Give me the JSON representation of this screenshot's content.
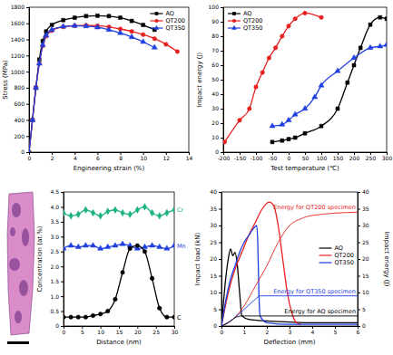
{
  "chart_data": [
    {
      "type": "line",
      "x_label": "Engineering strain (%)",
      "y_label": "Stress (MPa)",
      "xlim": [
        0,
        14
      ],
      "xticks": [
        0,
        2,
        4,
        6,
        8,
        10,
        12,
        14
      ],
      "ylim": [
        0,
        1800
      ],
      "yticks": [
        0,
        200,
        400,
        600,
        800,
        1000,
        1200,
        1400,
        1600,
        1800
      ],
      "legend": "upper right",
      "series": [
        {
          "name": "AQ",
          "color": "#000000",
          "marker": "square",
          "x": [
            0,
            0.3,
            0.6,
            0.9,
            1.2,
            1.5,
            2,
            3,
            4,
            5,
            6,
            7,
            8,
            9,
            10,
            11
          ],
          "values": [
            0,
            400,
            800,
            1150,
            1380,
            1500,
            1580,
            1640,
            1670,
            1690,
            1695,
            1690,
            1670,
            1630,
            1580,
            1520
          ]
        },
        {
          "name": "QT200",
          "color": "#e8201e",
          "marker": "circle",
          "x": [
            0,
            0.3,
            0.6,
            0.9,
            1.2,
            1.5,
            2,
            3,
            4,
            5,
            6,
            7,
            8,
            9,
            10,
            11,
            12,
            13
          ],
          "values": [
            0,
            400,
            800,
            1100,
            1320,
            1440,
            1510,
            1555,
            1570,
            1575,
            1570,
            1555,
            1530,
            1500,
            1460,
            1410,
            1340,
            1250
          ]
        },
        {
          "name": "QT350",
          "color": "#1f3fe0",
          "marker": "triangle",
          "x": [
            0,
            0.3,
            0.6,
            0.9,
            1.2,
            1.5,
            2,
            3,
            4,
            5,
            6,
            7,
            8,
            9,
            10,
            11
          ],
          "values": [
            0,
            400,
            800,
            1100,
            1330,
            1450,
            1520,
            1560,
            1570,
            1565,
            1550,
            1520,
            1480,
            1430,
            1370,
            1300
          ]
        }
      ]
    },
    {
      "type": "line",
      "x_label": "Test temperature (℃)",
      "y_label": "Impact energy (J)",
      "xlim": [
        -200,
        300
      ],
      "xticks": [
        -200,
        -150,
        -100,
        -50,
        0,
        50,
        100,
        150,
        200,
        250,
        300
      ],
      "ylim": [
        0,
        100
      ],
      "yticks": [
        0,
        10,
        20,
        30,
        40,
        50,
        60,
        70,
        80,
        90,
        100
      ],
      "legend": "upper left",
      "series": [
        {
          "name": "AQ",
          "color": "#000000",
          "marker": "square",
          "x": [
            -50,
            -20,
            0,
            20,
            50,
            100,
            150,
            180,
            200,
            220,
            250,
            280,
            300
          ],
          "values": [
            7,
            8,
            9,
            10,
            13,
            18,
            30,
            48,
            60,
            72,
            88,
            93,
            92
          ]
        },
        {
          "name": "QT200",
          "color": "#e8201e",
          "marker": "circle",
          "x": [
            -196,
            -150,
            -120,
            -100,
            -80,
            -60,
            -40,
            -20,
            0,
            20,
            50,
            100
          ],
          "values": [
            7,
            22,
            30,
            45,
            55,
            65,
            72,
            80,
            87,
            92,
            96,
            93
          ]
        },
        {
          "name": "QT350",
          "color": "#1f3fe0",
          "marker": "triangle",
          "x": [
            -50,
            -20,
            0,
            20,
            50,
            80,
            100,
            150,
            200,
            250,
            280,
            300
          ],
          "values": [
            18,
            19,
            22,
            26,
            30,
            38,
            46,
            56,
            65,
            72,
            73,
            74
          ]
        }
      ]
    },
    {
      "type": "line",
      "x_label": "Distance (nm)",
      "y_label": "Concentration (at.%)",
      "xlim": [
        0,
        30
      ],
      "xticks": [
        0,
        5,
        10,
        15,
        20,
        25,
        30
      ],
      "ylim": [
        0,
        4.5
      ],
      "yticks": [
        0,
        0.5,
        {
          "value": 1,
          "label": "1.0"
        },
        1.5,
        {
          "value": 2,
          "label": "2.0"
        },
        2.5,
        {
          "value": 3,
          "label": "3.0"
        },
        3.5,
        {
          "value": 4,
          "label": "4.0"
        },
        4.5
      ],
      "x": [
        0,
        2,
        4,
        6,
        8,
        10,
        12,
        14,
        16,
        18,
        20,
        22,
        24,
        26,
        28,
        30
      ],
      "series": [
        {
          "name": "Cr",
          "color": "#19b37a",
          "marker": "diamond",
          "values": [
            3.8,
            3.7,
            3.75,
            3.9,
            3.8,
            3.7,
            3.85,
            3.9,
            3.8,
            3.75,
            3.9,
            4.0,
            3.8,
            3.7,
            3.8,
            3.9
          ]
        },
        {
          "name": "Mn",
          "color": "#1f3fe0",
          "marker": "triangle",
          "values": [
            2.6,
            2.7,
            2.65,
            2.7,
            2.7,
            2.6,
            2.65,
            2.7,
            2.75,
            2.7,
            2.6,
            2.65,
            2.7,
            2.65,
            2.6,
            2.7
          ]
        },
        {
          "name": "C",
          "color": "#000000",
          "marker": "circle",
          "values": [
            0.3,
            0.3,
            0.3,
            0.3,
            0.35,
            0.4,
            0.5,
            0.9,
            1.8,
            2.6,
            2.7,
            2.5,
            1.6,
            0.6,
            0.3,
            0.3
          ]
        }
      ]
    },
    {
      "type": "line",
      "x_label": "Deflection (mm)",
      "y_label": "Impact load (kN)",
      "y2_label": "Impact energy (J)",
      "xlim": [
        0,
        6
      ],
      "xticks": [
        0,
        1,
        2,
        3,
        4,
        5,
        6
      ],
      "ylim": [
        0,
        40
      ],
      "yticks": [
        0,
        5,
        10,
        15,
        20,
        25,
        30,
        35,
        40
      ],
      "y2lim": [
        0,
        40
      ],
      "y2ticks": [
        0,
        5,
        10,
        15,
        20,
        25,
        30,
        35,
        40
      ],
      "legend": "center right",
      "series": [
        {
          "name": "AQ",
          "color": "#000000",
          "x": [
            0,
            0.1,
            0.2,
            0.3,
            0.4,
            0.5,
            0.6,
            0.7,
            0.8,
            0.9,
            1.2,
            2,
            3,
            4,
            5,
            6
          ],
          "values": [
            0,
            8,
            15,
            20,
            23,
            21,
            22,
            18,
            10,
            3,
            2,
            1.5,
            1.2,
            1,
            1,
            1
          ]
        },
        {
          "name": "QT200",
          "color": "#e8201e",
          "x": [
            0,
            0.3,
            0.6,
            0.9,
            1.2,
            1.5,
            1.8,
            2.1,
            2.3,
            2.5,
            2.7,
            2.9,
            3.1,
            3.3,
            3.5
          ],
          "values": [
            0,
            10,
            17,
            22,
            27,
            31,
            35,
            37,
            36,
            30,
            20,
            10,
            4,
            1,
            0.5
          ]
        },
        {
          "name": "QT350",
          "color": "#1f3fe0",
          "x": [
            0,
            0.2,
            0.4,
            0.6,
            0.8,
            1.0,
            1.2,
            1.4,
            1.55,
            1.6,
            1.65,
            1.7,
            2,
            3,
            4,
            5,
            6
          ],
          "values": [
            0,
            8,
            14,
            18,
            22,
            25,
            27,
            29,
            30,
            25,
            10,
            3,
            1,
            0.5,
            0.5,
            0.5,
            0.5
          ]
        },
        {
          "name": "Energy for QT200 specimen",
          "color": "#e8201e",
          "axis": "y2",
          "x": [
            0,
            0.5,
            1,
            1.5,
            2,
            2.5,
            3,
            3.5,
            4,
            6
          ],
          "values": [
            0,
            2,
            6,
            12,
            18,
            25,
            30,
            32,
            33,
            34
          ]
        },
        {
          "name": "Energy for QT350 specimen",
          "color": "#1f3fe0",
          "axis": "y2",
          "x": [
            0,
            0.5,
            1,
            1.5,
            1.7,
            2,
            3,
            6
          ],
          "values": [
            0,
            2,
            5,
            8,
            9,
            9,
            9,
            9
          ]
        },
        {
          "name": "Energy for AQ specimen",
          "color": "#000000",
          "axis": "y2",
          "x": [
            0,
            0.3,
            0.6,
            0.9,
            1.5,
            3,
            6
          ],
          "values": [
            0,
            1,
            2.5,
            3,
            3,
            3,
            3
          ]
        }
      ]
    }
  ]
}
